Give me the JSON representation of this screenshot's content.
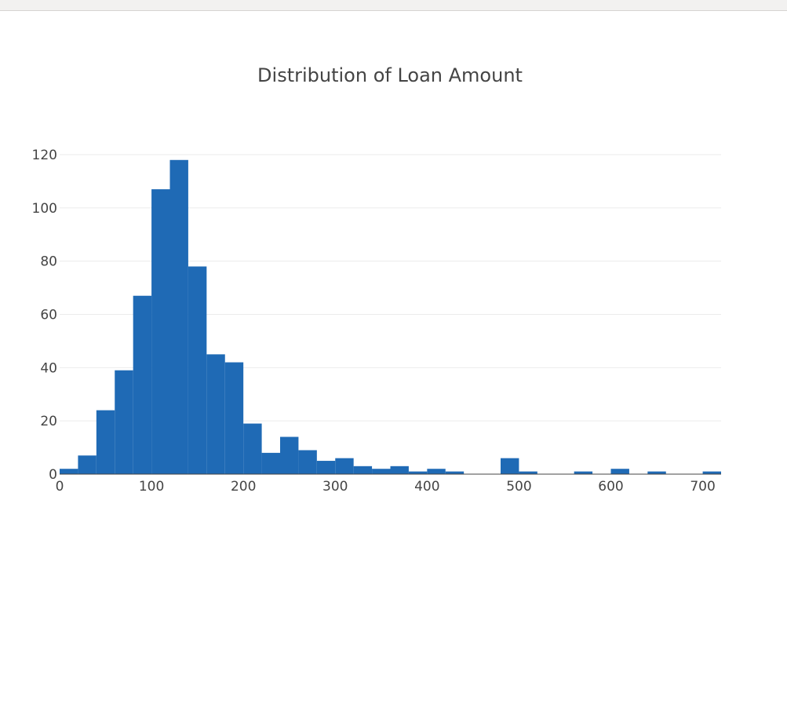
{
  "chart_data": {
    "type": "bar",
    "title": "Distribution of Loan Amount",
    "xlabel": "",
    "ylabel": "",
    "bar_color": "#1f6ab5",
    "bin_width": 20,
    "xlim": [
      0,
      720
    ],
    "ylim": [
      0,
      120
    ],
    "x_ticks": [
      0,
      100,
      200,
      300,
      400,
      500,
      600,
      700
    ],
    "y_ticks": [
      0,
      20,
      40,
      60,
      80,
      100,
      120
    ],
    "grid": true,
    "bins": [
      {
        "x0": 0,
        "x1": 20,
        "count": 2
      },
      {
        "x0": 20,
        "x1": 40,
        "count": 7
      },
      {
        "x0": 40,
        "x1": 60,
        "count": 24
      },
      {
        "x0": 60,
        "x1": 80,
        "count": 39
      },
      {
        "x0": 80,
        "x1": 100,
        "count": 67
      },
      {
        "x0": 100,
        "x1": 120,
        "count": 107
      },
      {
        "x0": 120,
        "x1": 140,
        "count": 118
      },
      {
        "x0": 140,
        "x1": 160,
        "count": 78
      },
      {
        "x0": 160,
        "x1": 180,
        "count": 45
      },
      {
        "x0": 180,
        "x1": 200,
        "count": 42
      },
      {
        "x0": 200,
        "x1": 220,
        "count": 19
      },
      {
        "x0": 220,
        "x1": 240,
        "count": 8
      },
      {
        "x0": 240,
        "x1": 260,
        "count": 14
      },
      {
        "x0": 260,
        "x1": 280,
        "count": 9
      },
      {
        "x0": 280,
        "x1": 300,
        "count": 5
      },
      {
        "x0": 300,
        "x1": 320,
        "count": 6
      },
      {
        "x0": 320,
        "x1": 340,
        "count": 3
      },
      {
        "x0": 340,
        "x1": 360,
        "count": 2
      },
      {
        "x0": 360,
        "x1": 380,
        "count": 3
      },
      {
        "x0": 380,
        "x1": 400,
        "count": 1
      },
      {
        "x0": 400,
        "x1": 420,
        "count": 2
      },
      {
        "x0": 420,
        "x1": 440,
        "count": 1
      },
      {
        "x0": 440,
        "x1": 460,
        "count": 0
      },
      {
        "x0": 460,
        "x1": 480,
        "count": 0
      },
      {
        "x0": 480,
        "x1": 500,
        "count": 6
      },
      {
        "x0": 500,
        "x1": 520,
        "count": 1
      },
      {
        "x0": 520,
        "x1": 540,
        "count": 0
      },
      {
        "x0": 540,
        "x1": 560,
        "count": 0
      },
      {
        "x0": 560,
        "x1": 580,
        "count": 1
      },
      {
        "x0": 580,
        "x1": 600,
        "count": 0
      },
      {
        "x0": 600,
        "x1": 620,
        "count": 2
      },
      {
        "x0": 620,
        "x1": 640,
        "count": 0
      },
      {
        "x0": 640,
        "x1": 660,
        "count": 1
      },
      {
        "x0": 660,
        "x1": 680,
        "count": 0
      },
      {
        "x0": 680,
        "x1": 700,
        "count": 0
      },
      {
        "x0": 700,
        "x1": 720,
        "count": 1
      }
    ]
  }
}
